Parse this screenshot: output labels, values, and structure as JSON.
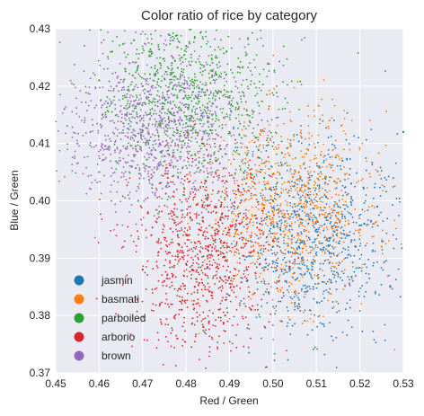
{
  "chart_data": {
    "type": "scatter",
    "title": "Color ratio of rice by category",
    "xlabel": "Red / Green",
    "ylabel": "Blue / Green",
    "xlim": [
      0.45,
      0.53
    ],
    "ylim": [
      0.37,
      0.43
    ],
    "xticks": [
      0.45,
      0.46,
      0.47,
      0.48,
      0.49,
      0.5,
      0.51,
      0.52,
      0.53
    ],
    "xtick_labels": [
      "0.45",
      "0.46",
      "0.47",
      "0.48",
      "0.49",
      "0.50",
      "0.51",
      "0.52",
      "0.53"
    ],
    "yticks": [
      0.37,
      0.38,
      0.39,
      0.4,
      0.41,
      0.42,
      0.43
    ],
    "ytick_labels": [
      "0.37",
      "0.38",
      "0.39",
      "0.40",
      "0.41",
      "0.42",
      "0.43"
    ],
    "grid": true,
    "legend_position": "lower-left",
    "background": "#eaeaf2",
    "series": [
      {
        "name": "jasmin",
        "color": "#1f77b4",
        "points": [
          [
            0.505,
            0.398
          ],
          [
            0.508,
            0.401
          ],
          [
            0.5,
            0.392
          ],
          [
            0.512,
            0.404
          ],
          [
            0.503,
            0.386
          ],
          [
            0.497,
            0.389
          ],
          [
            0.51,
            0.395
          ],
          [
            0.515,
            0.399
          ],
          [
            0.506,
            0.382
          ],
          [
            0.499,
            0.384
          ],
          [
            0.513,
            0.391
          ],
          [
            0.518,
            0.403
          ],
          [
            0.521,
            0.396
          ],
          [
            0.502,
            0.379
          ],
          [
            0.495,
            0.381
          ],
          [
            0.509,
            0.388
          ],
          [
            0.516,
            0.407
          ],
          [
            0.524,
            0.399
          ],
          [
            0.53,
            0.412
          ],
          [
            0.527,
            0.385
          ],
          [
            0.507,
            0.393
          ],
          [
            0.511,
            0.408
          ],
          [
            0.501,
            0.396
          ],
          [
            0.494,
            0.386
          ],
          [
            0.519,
            0.392
          ]
        ]
      },
      {
        "name": "basmati",
        "color": "#ff7f0e",
        "points": [
          [
            0.5,
            0.398
          ],
          [
            0.503,
            0.402
          ],
          [
            0.497,
            0.395
          ],
          [
            0.506,
            0.405
          ],
          [
            0.495,
            0.392
          ],
          [
            0.509,
            0.4
          ],
          [
            0.498,
            0.388
          ],
          [
            0.512,
            0.403
          ],
          [
            0.492,
            0.399
          ],
          [
            0.504,
            0.41
          ],
          [
            0.515,
            0.398
          ],
          [
            0.49,
            0.394
          ],
          [
            0.507,
            0.393
          ],
          [
            0.501,
            0.386
          ],
          [
            0.511,
            0.408
          ],
          [
            0.494,
            0.404
          ],
          [
            0.517,
            0.401
          ],
          [
            0.488,
            0.397
          ],
          [
            0.52,
            0.395
          ],
          [
            0.505,
            0.382
          ],
          [
            0.525,
            0.392
          ],
          [
            0.513,
            0.414
          ],
          [
            0.499,
            0.416
          ],
          [
            0.502,
            0.391
          ],
          [
            0.496,
            0.401
          ]
        ]
      },
      {
        "name": "parboiled",
        "color": "#2ca02c",
        "points": [
          [
            0.478,
            0.418
          ],
          [
            0.482,
            0.421
          ],
          [
            0.474,
            0.424
          ],
          [
            0.486,
            0.415
          ],
          [
            0.47,
            0.42
          ],
          [
            0.49,
            0.412
          ],
          [
            0.466,
            0.423
          ],
          [
            0.48,
            0.427
          ],
          [
            0.476,
            0.429
          ],
          [
            0.494,
            0.408
          ],
          [
            0.484,
            0.41
          ],
          [
            0.472,
            0.426
          ],
          [
            0.488,
            0.419
          ],
          [
            0.46,
            0.421
          ],
          [
            0.498,
            0.404
          ],
          [
            0.468,
            0.428
          ],
          [
            0.492,
            0.416
          ],
          [
            0.481,
            0.413
          ],
          [
            0.475,
            0.418
          ],
          [
            0.5,
            0.4
          ],
          [
            0.487,
            0.422
          ],
          [
            0.463,
            0.426
          ],
          [
            0.496,
            0.411
          ],
          [
            0.479,
            0.425
          ],
          [
            0.471,
            0.415
          ]
        ]
      },
      {
        "name": "arborio",
        "color": "#d62728",
        "points": [
          [
            0.485,
            0.392
          ],
          [
            0.48,
            0.389
          ],
          [
            0.49,
            0.395
          ],
          [
            0.482,
            0.385
          ],
          [
            0.476,
            0.391
          ],
          [
            0.488,
            0.399
          ],
          [
            0.494,
            0.388
          ],
          [
            0.479,
            0.381
          ],
          [
            0.472,
            0.394
          ],
          [
            0.486,
            0.384
          ],
          [
            0.492,
            0.402
          ],
          [
            0.484,
            0.378
          ],
          [
            0.475,
            0.386
          ],
          [
            0.497,
            0.396
          ],
          [
            0.481,
            0.397
          ],
          [
            0.47,
            0.388
          ],
          [
            0.489,
            0.38
          ],
          [
            0.478,
            0.376
          ],
          [
            0.495,
            0.404
          ],
          [
            0.487,
            0.407
          ],
          [
            0.5,
            0.393
          ],
          [
            0.483,
            0.395
          ],
          [
            0.477,
            0.398
          ],
          [
            0.491,
            0.385
          ],
          [
            0.474,
            0.382
          ]
        ]
      },
      {
        "name": "brown",
        "color": "#9467bd",
        "points": [
          [
            0.474,
            0.41
          ],
          [
            0.47,
            0.413
          ],
          [
            0.478,
            0.407
          ],
          [
            0.466,
            0.415
          ],
          [
            0.48,
            0.411
          ],
          [
            0.472,
            0.404
          ],
          [
            0.462,
            0.417
          ],
          [
            0.476,
            0.418
          ],
          [
            0.484,
            0.406
          ],
          [
            0.468,
            0.408
          ],
          [
            0.458,
            0.412
          ],
          [
            0.482,
            0.402
          ],
          [
            0.464,
            0.42
          ],
          [
            0.473,
            0.422
          ],
          [
            0.488,
            0.409
          ],
          [
            0.455,
            0.41
          ],
          [
            0.479,
            0.414
          ],
          [
            0.469,
            0.4
          ],
          [
            0.486,
            0.413
          ],
          [
            0.46,
            0.405
          ],
          [
            0.477,
            0.425
          ],
          [
            0.491,
            0.404
          ],
          [
            0.467,
            0.424
          ],
          [
            0.452,
            0.416
          ],
          [
            0.483,
            0.419
          ]
        ]
      }
    ]
  }
}
